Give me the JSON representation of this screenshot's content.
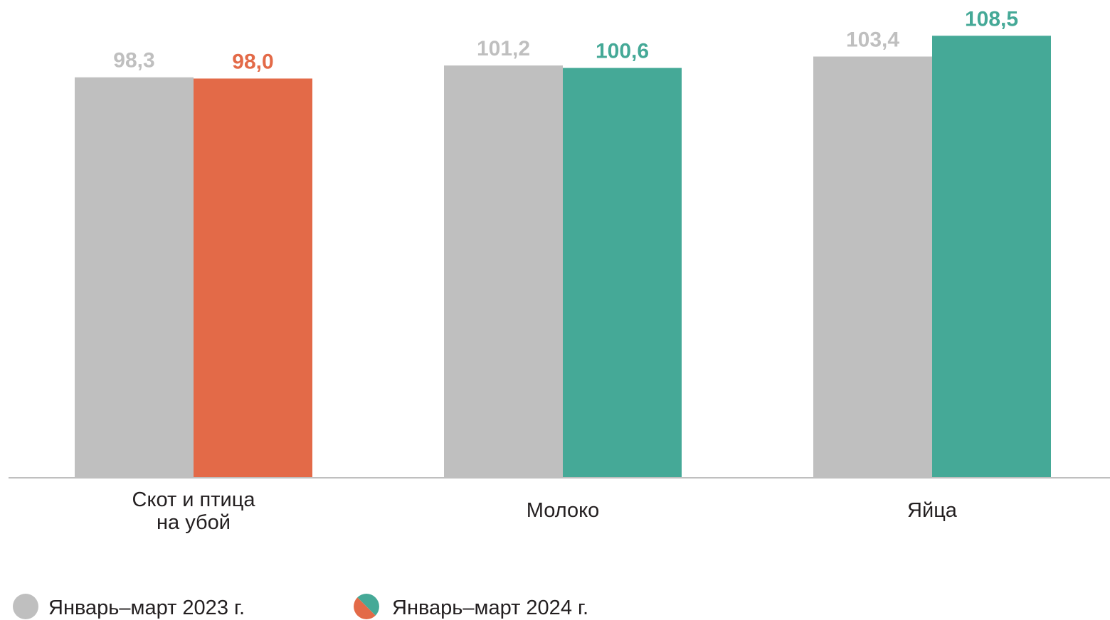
{
  "chart_data": {
    "type": "bar",
    "categories": [
      "Скот и птица\nна убой",
      "Молоко",
      "Яйца"
    ],
    "series": [
      {
        "name": "Январь–март 2023 г.",
        "values": [
          98.3,
          101.2,
          103.4
        ],
        "labels": [
          "98,3",
          "101,2",
          "103,4"
        ],
        "color": "#bfbfbf"
      },
      {
        "name": "Январь–март 2024 г.",
        "values": [
          98.0,
          100.6,
          108.5
        ],
        "labels": [
          "98,0",
          "100,6",
          "108,5"
        ],
        "colors": [
          "#e36a48",
          "#45a997",
          "#45a997"
        ]
      }
    ],
    "legend_position": "bottom-left",
    "grid": false,
    "xlabel": "",
    "ylabel": ""
  },
  "colors": {
    "gray": "#bfbfbf",
    "orange": "#e36a48",
    "teal": "#45a997",
    "gray_label": "#bfbfbf",
    "axis": "#bfbfbf"
  }
}
